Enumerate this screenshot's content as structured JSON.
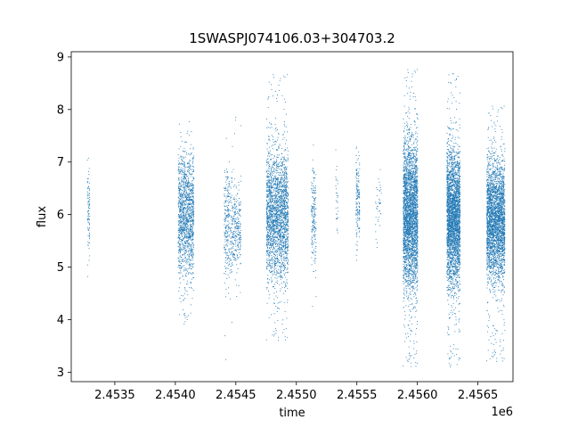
{
  "chart_data": {
    "type": "scatter",
    "title": "1SWASPJ074106.03+304703.2",
    "xlabel": "time",
    "ylabel": "flux",
    "x_offset_label": "1e6",
    "xlim": [
      2453140,
      2456790
    ],
    "ylim": [
      2.82,
      9.1
    ],
    "xticks": [
      2453500,
      2454000,
      2454500,
      2455000,
      2455500,
      2456000,
      2456500
    ],
    "xtick_labels": [
      "2.4535",
      "2.4540",
      "2.4545",
      "2.4550",
      "2.4555",
      "2.4560",
      "2.4565"
    ],
    "yticks": [
      3,
      4,
      5,
      6,
      7,
      8,
      9
    ],
    "ytick_labels": [
      "3",
      "4",
      "5",
      "6",
      "7",
      "8",
      "9"
    ],
    "grid": false,
    "marker_color": "#1f77b4",
    "series": [
      {
        "clusters": [
          {
            "x_range": [
              2453270,
              2453290
            ],
            "y_range": [
              4.6,
              7.2
            ],
            "core": [
              5.2,
              6.9
            ],
            "n": 90
          },
          {
            "x_range": [
              2454020,
              2454150
            ],
            "y_range": [
              3.9,
              7.9
            ],
            "core": [
              4.9,
              7.1
            ],
            "n": 1400
          },
          {
            "x_range": [
              2454400,
              2454470
            ],
            "y_range": [
              3.1,
              7.6
            ],
            "core": [
              4.7,
              6.9
            ],
            "n": 300
          },
          {
            "x_range": [
              2454470,
              2454540
            ],
            "y_range": [
              4.3,
              8.4
            ],
            "core": [
              5.0,
              6.5
            ],
            "n": 260
          },
          {
            "x_range": [
              2454750,
              2454930
            ],
            "y_range": [
              3.6,
              8.7
            ],
            "core": [
              4.8,
              7.2
            ],
            "n": 2300
          },
          {
            "x_range": [
              2455120,
              2455160
            ],
            "y_range": [
              4.0,
              7.6
            ],
            "core": [
              5.0,
              6.9
            ],
            "n": 180
          },
          {
            "x_range": [
              2455320,
              2455340
            ],
            "y_range": [
              5.4,
              7.3
            ],
            "core": [
              5.6,
              7.0
            ],
            "n": 30
          },
          {
            "x_range": [
              2455490,
              2455520
            ],
            "y_range": [
              5.1,
              8.0
            ],
            "core": [
              5.5,
              7.2
            ],
            "n": 160
          },
          {
            "x_range": [
              2455650,
              2455700
            ],
            "y_range": [
              5.3,
              7.0
            ],
            "core": [
              5.6,
              6.8
            ],
            "n": 40
          },
          {
            "x_range": [
              2455880,
              2456000
            ],
            "y_range": [
              3.1,
              8.8
            ],
            "core": [
              4.6,
              7.4
            ],
            "n": 3000
          },
          {
            "x_range": [
              2456240,
              2456350
            ],
            "y_range": [
              3.1,
              8.7
            ],
            "core": [
              4.7,
              7.2
            ],
            "n": 3000
          },
          {
            "x_range": [
              2456570,
              2456720
            ],
            "y_range": [
              3.2,
              8.1
            ],
            "core": [
              4.8,
              7.0
            ],
            "n": 3000
          }
        ]
      }
    ]
  }
}
